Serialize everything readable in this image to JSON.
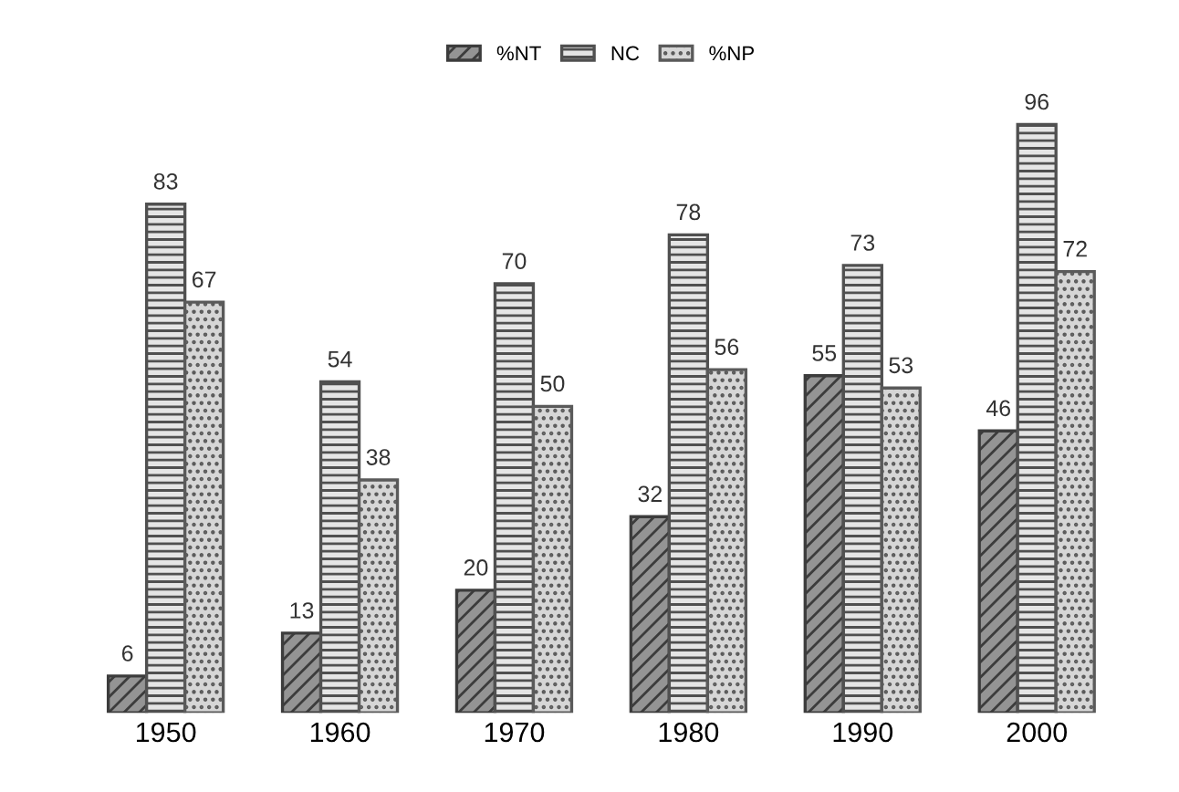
{
  "chart_data": {
    "type": "bar",
    "categories": [
      "1950",
      "1960",
      "1970",
      "1980",
      "1990",
      "2000"
    ],
    "series": [
      {
        "name": "%NT",
        "color": "#3c3c3c",
        "values": [
          6,
          13,
          20,
          32,
          55,
          46
        ]
      },
      {
        "name": "NC",
        "color": "#505050",
        "values": [
          83,
          54,
          70,
          78,
          73,
          96
        ]
      },
      {
        "name": "%NP",
        "color": "#5a5a5a",
        "values": [
          67,
          38,
          50,
          56,
          53,
          72
        ]
      }
    ],
    "data_labels": true,
    "legend": "top",
    "grid": false
  }
}
